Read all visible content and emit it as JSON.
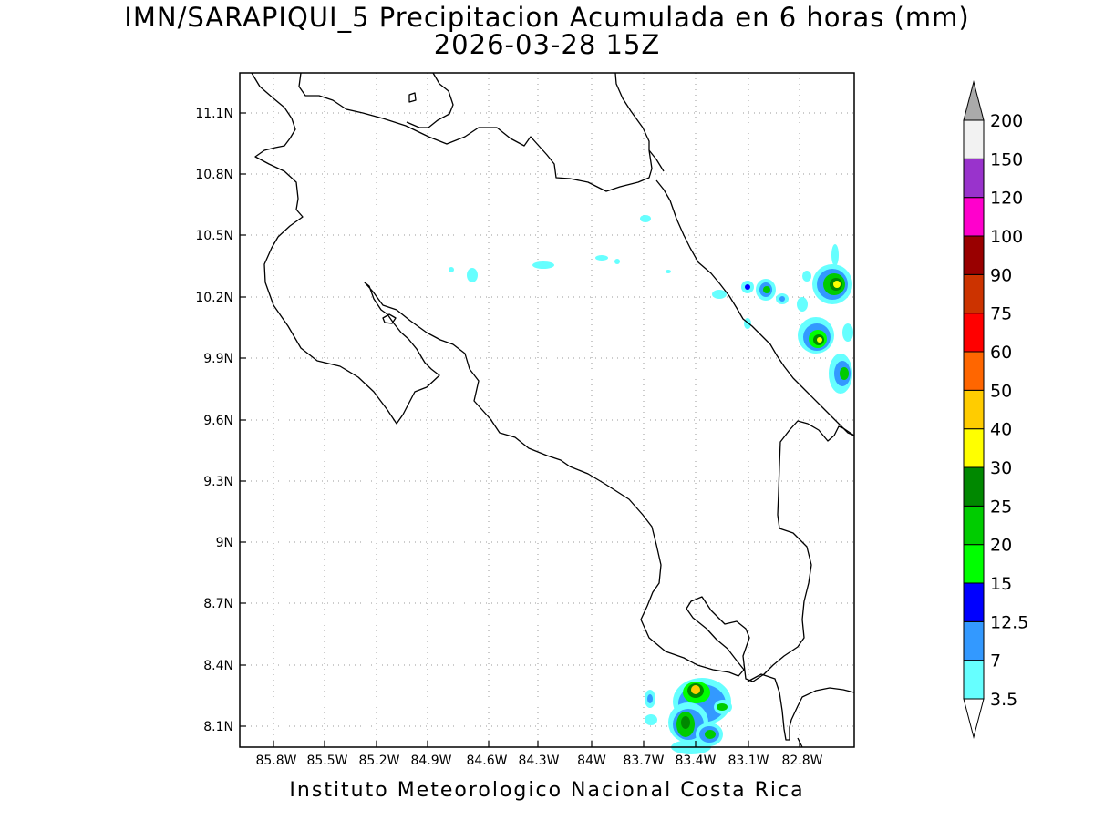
{
  "title_line1": "IMN/SARAPIQUI_5 Precipitacion Acumulada en 6 horas (mm)",
  "title_line2": "2026-03-28 15Z",
  "footer": "Instituto Meteorologico Nacional Costa Rica",
  "lat_labels": [
    "11.1N",
    "10.8N",
    "10.5N",
    "10.2N",
    "9.9N",
    "9.6N",
    "9.3N",
    "9N",
    "8.7N",
    "8.4N",
    "8.1N"
  ],
  "lon_labels": [
    "85.8W",
    "85.5W",
    "85.2W",
    "84.9W",
    "84.6W",
    "84.3W",
    "84W",
    "83.7W",
    "83.4W",
    "83.1W",
    "82.8W"
  ],
  "legend": {
    "labels": [
      "3.5",
      "7",
      "12.5",
      "15",
      "20",
      "25",
      "30",
      "40",
      "50",
      "60",
      "75",
      "90",
      "100",
      "120",
      "150",
      "200"
    ],
    "colors": [
      "#ffffff",
      "#66ffff",
      "#3399ff",
      "#0000ff",
      "#00ff00",
      "#00cc00",
      "#008800",
      "#ffff00",
      "#ffcc00",
      "#ff6600",
      "#ff0000",
      "#cc3300",
      "#990000",
      "#ff00cc",
      "#9933cc",
      "#f2f2f2",
      "#aaaaaa"
    ]
  }
}
